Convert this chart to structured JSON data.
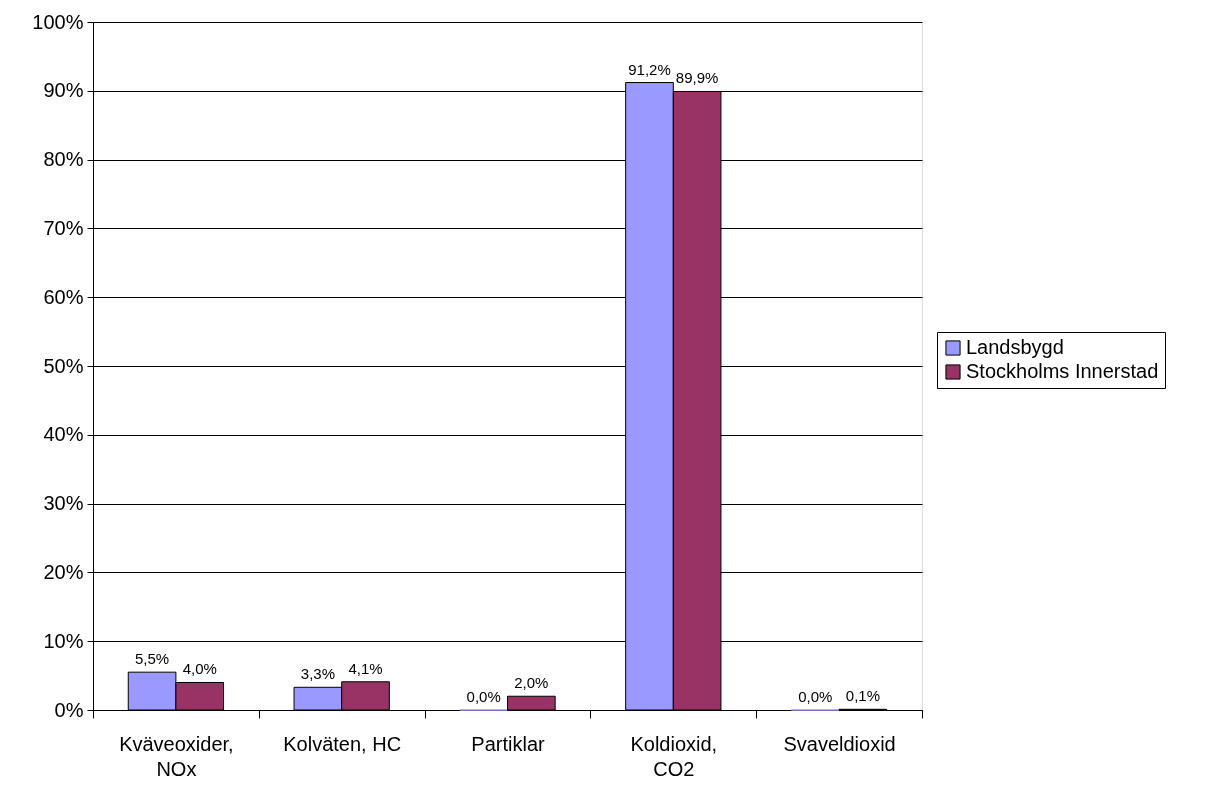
{
  "chart_data": {
    "type": "bar",
    "categories": [
      "Kväveoxider,\nNOx",
      "Kolväten, HC",
      "Partiklar",
      "Koldioxid,\nCO2",
      "Svaveldioxid"
    ],
    "series": [
      {
        "name": "Landsbygd",
        "color": "#9999ff",
        "values": [
          5.5,
          3.3,
          0.0,
          91.2,
          0.0
        ],
        "value_labels": [
          "5,5%",
          "3,3%",
          "0,0%",
          "91,2%",
          "0,0%"
        ]
      },
      {
        "name": "Stockholms Innerstad",
        "color": "#993366",
        "values": [
          4.0,
          4.1,
          2.0,
          89.9,
          0.1
        ],
        "value_labels": [
          "4,0%",
          "4,1%",
          "2,0%",
          "89,9%",
          "0,1%"
        ]
      }
    ],
    "ylim": [
      0,
      100
    ],
    "yticks": [
      {
        "value": 0,
        "label": "0%"
      },
      {
        "value": 10,
        "label": "10%"
      },
      {
        "value": 20,
        "label": "20%"
      },
      {
        "value": 30,
        "label": "30%"
      },
      {
        "value": 40,
        "label": "40%"
      },
      {
        "value": 50,
        "label": "50%"
      },
      {
        "value": 60,
        "label": "60%"
      },
      {
        "value": 70,
        "label": "70%"
      },
      {
        "value": 80,
        "label": "80%"
      },
      {
        "value": 90,
        "label": "90%"
      },
      {
        "value": 100,
        "label": "100%"
      }
    ],
    "grid": "y",
    "legend": "right"
  }
}
